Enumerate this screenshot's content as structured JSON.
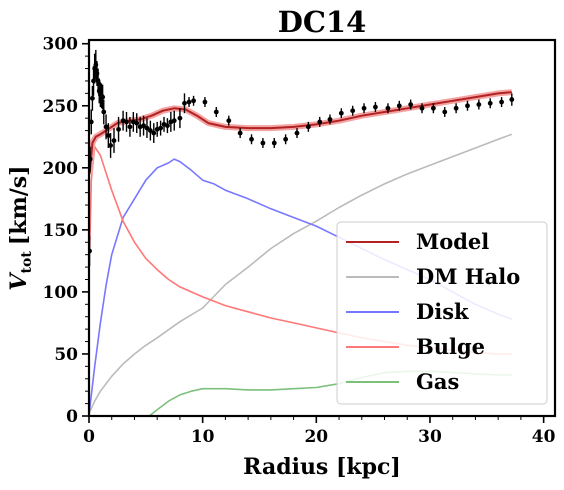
{
  "chart_data": {
    "type": "line",
    "title": "DC14",
    "xlabel": "Radius [kpc]",
    "ylabel_main": "V",
    "ylabel_sub": "tot",
    "ylabel_unit": "[km/s]",
    "xlim": [
      0,
      41
    ],
    "ylim": [
      0,
      303
    ],
    "xticks": [
      0,
      10,
      20,
      30,
      40
    ],
    "yticks": [
      0,
      50,
      100,
      150,
      200,
      250,
      300
    ],
    "legend_position": "lower-right",
    "series": [
      {
        "name": "Model",
        "color": "#b22222",
        "x": [
          0.05,
          0.3,
          0.6,
          1.0,
          1.5,
          2.5,
          3.5,
          4.5,
          5.5,
          6.5,
          7.5,
          8.5,
          9.5,
          10.5,
          12,
          14,
          16,
          18,
          20,
          22,
          24,
          26,
          28,
          30,
          32,
          34,
          36,
          37.2
        ],
        "y": [
          195,
          220,
          225,
          227,
          230,
          236,
          238,
          239,
          242,
          246,
          248,
          247,
          242,
          236,
          233,
          232,
          232,
          233,
          235,
          238,
          242,
          245,
          248,
          251,
          254,
          257,
          260,
          261
        ]
      },
      {
        "name": "DM Halo",
        "color": "#bbbbbb",
        "x": [
          0.05,
          0.5,
          1,
          2,
          3,
          4,
          5,
          6,
          8,
          10,
          12,
          14,
          16,
          18,
          20,
          22,
          24,
          26,
          28,
          30,
          32,
          34,
          36,
          37.2
        ],
        "y": [
          3,
          12,
          20,
          32,
          42,
          50,
          57,
          63,
          76,
          87,
          106,
          120,
          135,
          147,
          157,
          168,
          178,
          187,
          195,
          202,
          209,
          216,
          223,
          227
        ]
      },
      {
        "name": "Disk",
        "color": "#7777ff",
        "x": [
          0.05,
          0.5,
          1,
          1.5,
          2,
          3,
          4,
          5,
          6,
          7,
          7.5,
          8,
          9,
          10,
          11,
          12,
          14,
          16,
          18,
          20,
          22,
          24,
          26,
          28,
          30,
          32,
          34,
          36,
          37.2
        ],
        "y": [
          5,
          40,
          75,
          105,
          130,
          160,
          175,
          190,
          200,
          204,
          207,
          205,
          198,
          190,
          187,
          182,
          175,
          167,
          160,
          153,
          144,
          135,
          126,
          118,
          110,
          100,
          90,
          82,
          78
        ]
      },
      {
        "name": "Bulge",
        "color": "#ff7777",
        "x": [
          0.05,
          0.2,
          0.5,
          1,
          1.5,
          2,
          3,
          4,
          5,
          6,
          7,
          8,
          10,
          12,
          14,
          16,
          18,
          20,
          22,
          24,
          26,
          28,
          30,
          32,
          34,
          36,
          37.2
        ],
        "y": [
          130,
          190,
          217,
          210,
          196,
          182,
          157,
          140,
          127,
          118,
          110,
          104,
          96,
          89,
          84,
          79,
          75,
          71,
          67,
          63,
          60,
          57,
          55,
          53,
          51,
          50,
          50
        ]
      },
      {
        "name": "Gas",
        "color": "#7cc07c",
        "x": [
          5.3,
          6,
          7,
          8,
          9,
          10,
          12,
          14,
          16,
          18,
          20,
          22,
          24,
          26,
          28,
          30,
          32,
          34,
          36,
          37.2
        ],
        "y": [
          0,
          5,
          12,
          17,
          20,
          22,
          22,
          21,
          21,
          22,
          23,
          26,
          31,
          35,
          36,
          36,
          35,
          34,
          33,
          33
        ]
      }
    ],
    "observations": {
      "color": "#000000",
      "x": [
        0.05,
        0.1,
        0.2,
        0.3,
        0.4,
        0.5,
        0.6,
        0.7,
        0.8,
        0.9,
        1.0,
        1.1,
        1.2,
        1.3,
        1.5,
        1.7,
        1.9,
        2.2,
        2.6,
        3.0,
        3.3,
        3.6,
        3.9,
        4.2,
        4.5,
        4.8,
        5.1,
        5.4,
        5.7,
        6.0,
        6.3,
        6.6,
        6.9,
        7.2,
        7.5,
        8.0,
        8.4,
        8.8,
        9.2,
        10.2,
        11.2,
        12.3,
        13.3,
        14.3,
        15.3,
        16.3,
        17.3,
        18.3,
        19.3,
        20.3,
        21.2,
        22.2,
        23.2,
        24.2,
        25.2,
        26.3,
        27.3,
        28.3,
        29.3,
        30.3,
        31.3,
        32.3,
        33.3,
        34.3,
        35.3,
        36.3,
        37.2
      ],
      "y": [
        133,
        207,
        237,
        256,
        270,
        280,
        283,
        276,
        270,
        262,
        259,
        258,
        257,
        245,
        233,
        226,
        218,
        222,
        231,
        238,
        237,
        233,
        237,
        236,
        233,
        234,
        232,
        230,
        228,
        231,
        232,
        235,
        234,
        237,
        238,
        240,
        252,
        253,
        254,
        253,
        245,
        238,
        228,
        223,
        220,
        220,
        223,
        228,
        233,
        237,
        239,
        244,
        246,
        248,
        249,
        248,
        250,
        251,
        248,
        248,
        245,
        248,
        250,
        251,
        252,
        253,
        255
      ],
      "err": [
        12,
        10,
        10,
        10,
        12,
        12,
        12,
        10,
        10,
        10,
        10,
        10,
        10,
        10,
        10,
        10,
        10,
        10,
        10,
        8,
        8,
        8,
        8,
        8,
        8,
        8,
        8,
        8,
        8,
        6,
        6,
        6,
        6,
        8,
        8,
        8,
        8,
        4,
        4,
        4,
        4,
        4,
        4,
        4,
        4,
        4,
        4,
        4,
        4,
        4,
        4,
        4,
        4,
        4,
        4,
        4,
        4,
        4,
        4,
        4,
        4,
        4,
        4,
        4,
        4,
        4,
        5
      ]
    }
  }
}
